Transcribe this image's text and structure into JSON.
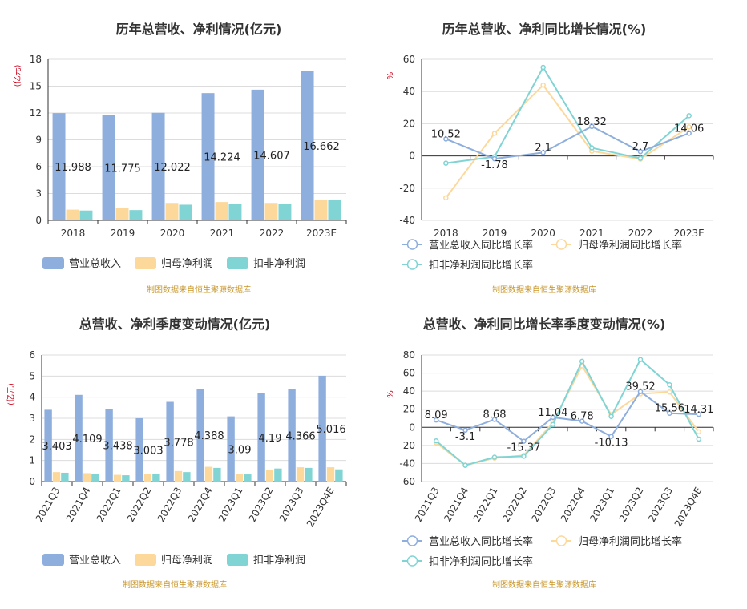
{
  "source_note": "制图数据来自恒生聚源数据库",
  "colors": {
    "revenue": "#8eaedd",
    "net_profit": "#fdd89b",
    "deducted_profit": "#80d4d4"
  },
  "chart_data": [
    {
      "type": "bar",
      "title": "历年总营收、净利情况(亿元)",
      "unit": "(亿元)",
      "categories": [
        "2018",
        "2019",
        "2020",
        "2021",
        "2022",
        "2023E"
      ],
      "ylim": [
        0,
        18
      ],
      "yticks": [
        0,
        3,
        6,
        9,
        12,
        15,
        18
      ],
      "label_series": 0,
      "series": [
        {
          "name": "营业总收入",
          "values": [
            11.988,
            11.775,
            12.022,
            14.224,
            14.607,
            16.662
          ],
          "labels": [
            "11.988",
            "11.775",
            "12.022",
            "14.224",
            "14.607",
            "16.662"
          ]
        },
        {
          "name": "归母净利润",
          "values": [
            1.2,
            1.35,
            1.95,
            2.05,
            1.95,
            2.3
          ]
        },
        {
          "name": "扣非净利润",
          "values": [
            1.1,
            1.15,
            1.75,
            1.85,
            1.8,
            2.3
          ]
        }
      ],
      "legend_position": "bottom"
    },
    {
      "type": "line",
      "title": "历年总营收、净利同比增长情况(%)",
      "unit": "%",
      "categories": [
        "2018",
        "2019",
        "2020",
        "2021",
        "2022",
        "2023E"
      ],
      "ylim": [
        -40,
        60
      ],
      "yticks": [
        -40,
        -20,
        0,
        20,
        40,
        60
      ],
      "label_series": 0,
      "series": [
        {
          "name": "营业总收入同比增长率",
          "values": [
            10.52,
            -1.78,
            2.1,
            18.32,
            2.7,
            14.06
          ],
          "labels": [
            "10.52",
            "-1.78",
            "2.1",
            "18.32",
            "2.7",
            "14.06"
          ]
        },
        {
          "name": "归母净利润同比增长率",
          "values": [
            -26,
            14,
            44,
            3,
            -2,
            18
          ]
        },
        {
          "name": "扣非净利润同比增长率",
          "values": [
            -4.5,
            -0.5,
            55,
            5,
            -1.5,
            25
          ]
        }
      ],
      "legend_position": "bottom"
    },
    {
      "type": "bar",
      "title": "总营收、净利季度变动情况(亿元)",
      "unit": "(亿元)",
      "categories": [
        "2021Q3",
        "2021Q4",
        "2022Q1",
        "2022Q2",
        "2022Q3",
        "2022Q4",
        "2023Q1",
        "2023Q2",
        "2023Q3",
        "2023Q4E"
      ],
      "ylim": [
        0,
        6
      ],
      "yticks": [
        0,
        1,
        2,
        3,
        4,
        5,
        6
      ],
      "label_series": 0,
      "series": [
        {
          "name": "营业总收入",
          "values": [
            3.403,
            4.109,
            3.438,
            3.003,
            3.778,
            4.388,
            3.09,
            4.19,
            4.366,
            5.016
          ],
          "labels": [
            "3.403",
            "4.109",
            "3.438",
            "3.003",
            "3.778",
            "4.388",
            "3.09",
            "4.19",
            "4.366",
            "5.016"
          ]
        },
        {
          "name": "归母净利润",
          "values": [
            0.45,
            0.4,
            0.32,
            0.38,
            0.5,
            0.7,
            0.38,
            0.55,
            0.68,
            0.68
          ]
        },
        {
          "name": "扣非净利润",
          "values": [
            0.42,
            0.38,
            0.3,
            0.35,
            0.45,
            0.65,
            0.34,
            0.62,
            0.65,
            0.58
          ]
        }
      ],
      "legend_position": "bottom"
    },
    {
      "type": "line",
      "title": "总营收、净利同比增长率季度变动情况(%)",
      "unit": "%",
      "categories": [
        "2021Q3",
        "2021Q4",
        "2022Q1",
        "2022Q2",
        "2022Q3",
        "2022Q4",
        "2023Q1",
        "2023Q2",
        "2023Q3",
        "2023Q4E"
      ],
      "ylim": [
        -60,
        80
      ],
      "yticks": [
        -60,
        -40,
        -20,
        0,
        20,
        40,
        60,
        80
      ],
      "label_series": 0,
      "series": [
        {
          "name": "营业总收入同比增长率",
          "values": [
            8.09,
            -3.1,
            8.68,
            -15.37,
            11.04,
            6.78,
            -10.13,
            39.52,
            15.56,
            14.31
          ],
          "labels": [
            "8.09",
            "-3.1",
            "8.68",
            "-15.37",
            "11.04",
            "6.78",
            "-10.13",
            "39.52",
            "15.56",
            "14.31"
          ]
        },
        {
          "name": "归母净利润同比增长率",
          "values": [
            -17,
            -42,
            -34,
            -31,
            5,
            68,
            14,
            37,
            39,
            -5
          ]
        },
        {
          "name": "扣非净利润同比增长率",
          "values": [
            -15,
            -42,
            -33,
            -32,
            3,
            73,
            12,
            75,
            47,
            -13
          ]
        }
      ],
      "legend_position": "bottom"
    }
  ]
}
